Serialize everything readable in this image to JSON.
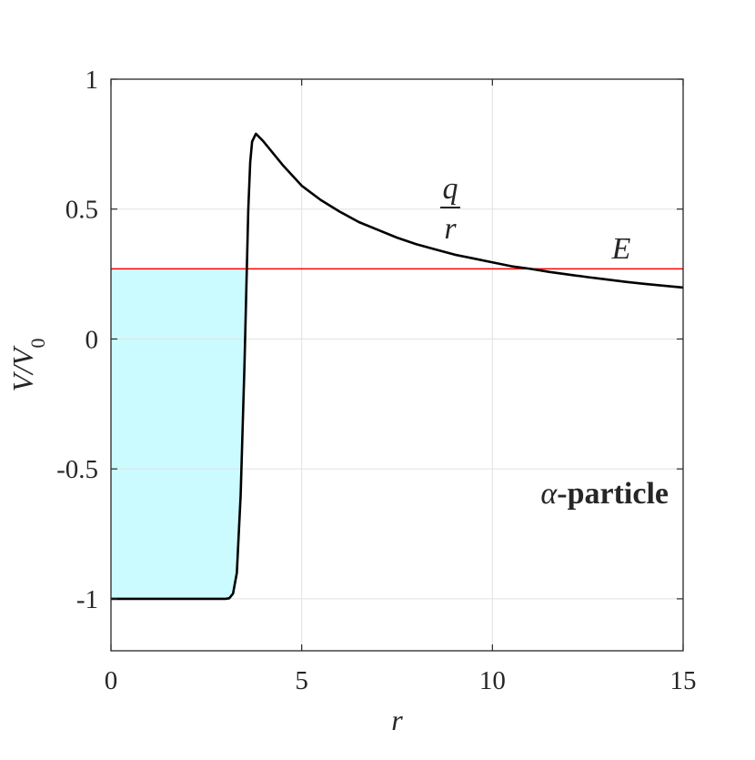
{
  "chart_data": {
    "type": "line",
    "xlabel": "r",
    "ylabel_main": "V/V",
    "ylabel_sub": "0",
    "xlim": [
      0,
      15
    ],
    "ylim": [
      -1.2,
      1
    ],
    "xticks": [
      0,
      5,
      10,
      15
    ],
    "xtick_labels": [
      "0",
      "5",
      "10",
      "15"
    ],
    "yticks": [
      -1,
      -0.5,
      0,
      0.5,
      1
    ],
    "ytick_labels": [
      "-1",
      "-0.5",
      "0",
      "0.5",
      "1"
    ],
    "grid": true,
    "energy_level": 0.27,
    "energy_label": "E",
    "coulomb_label_num": "q",
    "coulomb_label_den": "r",
    "particle_greek": "α",
    "particle_label": "-particle",
    "series": [
      {
        "values": [
          [
            0,
            -1
          ],
          [
            1,
            -1
          ],
          [
            2,
            -1
          ],
          [
            3,
            -1
          ],
          [
            3.1,
            -0.998
          ],
          [
            3.2,
            -0.98
          ],
          [
            3.3,
            -0.9
          ],
          [
            3.4,
            -0.6
          ],
          [
            3.5,
            -0.1
          ],
          [
            3.55,
            0.2
          ],
          [
            3.6,
            0.5
          ],
          [
            3.65,
            0.68
          ],
          [
            3.7,
            0.76
          ],
          [
            3.8,
            0.79
          ],
          [
            4,
            0.76
          ],
          [
            4.5,
            0.67
          ],
          [
            5,
            0.59
          ],
          [
            5.5,
            0.535
          ],
          [
            6,
            0.49
          ],
          [
            6.5,
            0.45
          ],
          [
            7,
            0.42
          ],
          [
            7.5,
            0.39
          ],
          [
            8,
            0.365
          ],
          [
            8.5,
            0.345
          ],
          [
            9,
            0.325
          ],
          [
            9.5,
            0.31
          ],
          [
            10,
            0.295
          ],
          [
            10.5,
            0.28
          ],
          [
            11,
            0.27
          ],
          [
            11.5,
            0.258
          ],
          [
            12,
            0.248
          ],
          [
            12.5,
            0.238
          ],
          [
            13,
            0.229
          ],
          [
            13.5,
            0.22
          ],
          [
            14,
            0.212
          ],
          [
            14.5,
            0.205
          ],
          [
            15,
            0.198
          ]
        ]
      }
    ],
    "colors": {
      "potential": "#000000",
      "energy": "#ff0000",
      "well_fill": "#ccfbff",
      "barrier_fill": "#ffccff",
      "grid": "#e1e1e1",
      "axis": "#262626"
    }
  }
}
